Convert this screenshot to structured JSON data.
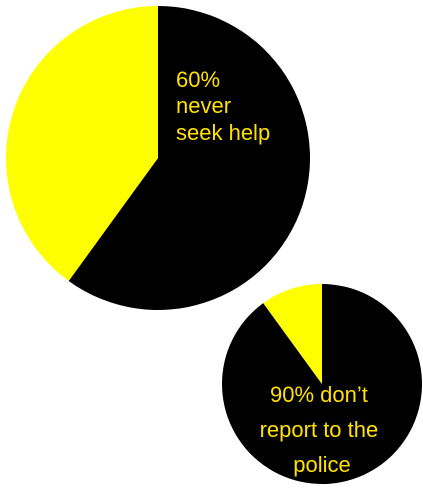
{
  "chart_data": [
    {
      "type": "pie",
      "slices": [
        {
          "label": "never seek help",
          "value": 60,
          "color": "#000000"
        },
        {
          "label": "",
          "value": 40,
          "color": "#ffff00"
        }
      ],
      "annotation": [
        "60%",
        "never",
        "seek help"
      ]
    },
    {
      "type": "pie",
      "slices": [
        {
          "label": "don’t report to the police",
          "value": 90,
          "color": "#000000"
        },
        {
          "label": "",
          "value": 10,
          "color": "#ffff00"
        }
      ],
      "annotation": [
        "90% don’t",
        "report to the",
        "police"
      ]
    }
  ]
}
